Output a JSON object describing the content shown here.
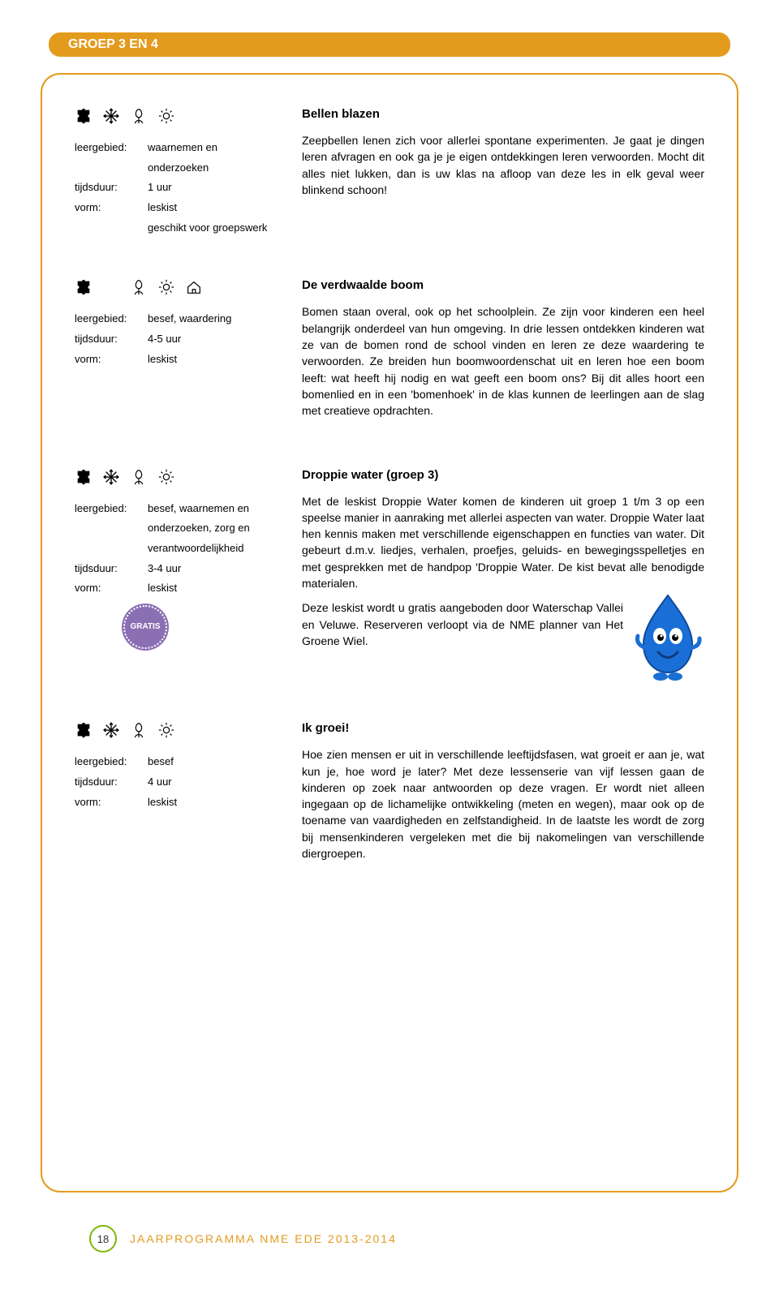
{
  "header": {
    "title": "GROEP 3 EN 4"
  },
  "labels": {
    "leergebied": "leergebied:",
    "tijdsduur": "tijdsduur:",
    "vorm": "vorm:"
  },
  "colors": {
    "accent_orange": "#e39b1e",
    "accent_green": "#7ab800",
    "stamp_purple": "#8b6fb3",
    "droppie_blue": "#1a6fd6"
  },
  "entries": [
    {
      "icons": [
        "puzzle",
        "snowflake",
        "tulip",
        "sun"
      ],
      "meta": {
        "leergebied": "waarnemen en onderzoeken",
        "tijdsduur": "1 uur",
        "vorm": "leskist",
        "extra": "geschikt voor groepswerk"
      },
      "title": "Bellen blazen",
      "body": [
        "Zeepbellen lenen zich voor allerlei spontane experimenten. Je gaat je dingen leren afvragen en ook ga je je eigen ontdekkingen leren verwoorden. Mocht dit alles niet lukken, dan is uw klas na afloop van deze les in elk geval weer blinkend schoon!"
      ]
    },
    {
      "icons": [
        "puzzle",
        "blank",
        "tulip",
        "sun",
        "house"
      ],
      "meta": {
        "leergebied": "besef, waardering",
        "tijdsduur": "4-5 uur",
        "vorm": "leskist"
      },
      "title": "De verdwaalde boom",
      "body": [
        "Bomen staan overal, ook op het schoolplein. Ze zijn voor kinderen een heel belangrijk onderdeel van hun omgeving. In drie lessen ontdekken kinderen wat ze van de bomen rond de school vinden en leren ze deze waardering te verwoorden. Ze breiden hun boomwoordenschat uit en leren hoe een boom leeft: wat heeft hij nodig en wat geeft een boom ons? Bij dit alles hoort een bomenlied en in een 'bomenhoek' in de klas kunnen de leerlingen aan de slag met creatieve opdrachten."
      ]
    },
    {
      "icons": [
        "puzzle",
        "snowflake",
        "tulip",
        "sun"
      ],
      "meta": {
        "leergebied": "besef, waarnemen en onderzoeken, zorg en verantwoordelijkheid",
        "tijdsduur": "3-4 uur",
        "vorm": "leskist"
      },
      "gratis": true,
      "gratis_label": "GRATIS",
      "title": "Droppie water (groep 3)",
      "body": [
        "Met de leskist Droppie Water komen de kinderen uit groep 1 t/m 3 op een speelse manier in aanraking met allerlei aspecten van water. Droppie Water laat hen kennis maken met verschillende eigenschappen en functies van water. Dit gebeurt d.m.v. liedjes, verhalen, proefjes, geluids- en bewegingsspelletjes en met gesprekken met de handpop 'Droppie Water. De kist bevat alle benodigde materialen.",
        "Deze leskist wordt u gratis aangeboden door Waterschap Vallei en Veluwe. Reserveren verloopt via de NME planner van Het Groene Wiel."
      ],
      "has_droppie_image": true
    },
    {
      "icons": [
        "puzzle",
        "snowflake",
        "tulip",
        "sun"
      ],
      "meta": {
        "leergebied": "besef",
        "tijdsduur": "4 uur",
        "vorm": "leskist"
      },
      "title": "Ik groei!",
      "body": [
        "Hoe zien mensen er uit in verschillende leeftijdsfasen, wat groeit er aan je, wat kun je, hoe word je later? Met deze lessenserie van vijf lessen gaan de kinderen op zoek naar antwoorden op deze vragen. Er wordt niet alleen ingegaan op de lichamelijke ontwikkeling (meten en wegen), maar ook op de toename van vaardigheden en zelfstandigheid. In de laatste les wordt de zorg bij mensenkinderen vergeleken met die bij nakomelingen van verschillende diergroepen."
      ]
    }
  ],
  "footer": {
    "page": "18",
    "title": "JAARPROGRAMMA NME EDE 2013-2014"
  }
}
